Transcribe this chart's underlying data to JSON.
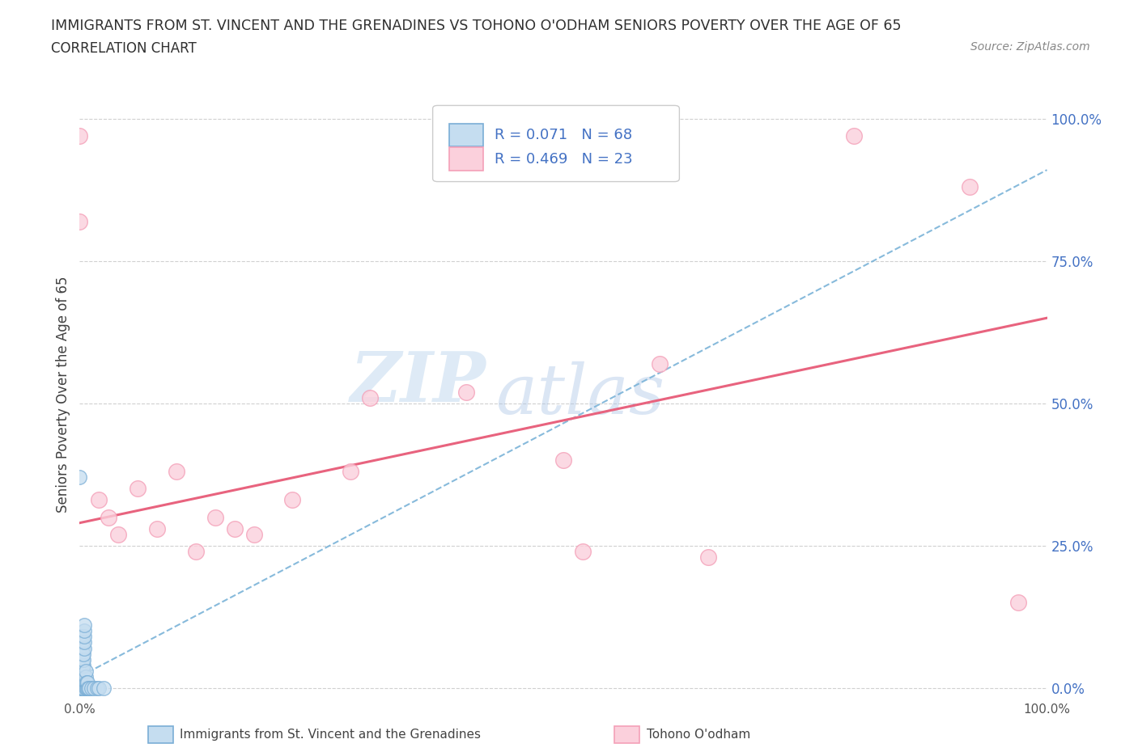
{
  "title": "IMMIGRANTS FROM ST. VINCENT AND THE GRENADINES VS TOHONO O'ODHAM SENIORS POVERTY OVER THE AGE OF 65",
  "subtitle": "CORRELATION CHART",
  "source": "Source: ZipAtlas.com",
  "ylabel": "Seniors Poverty Over the Age of 65",
  "ytick_labels": [
    "0.0%",
    "25.0%",
    "50.0%",
    "75.0%",
    "100.0%"
  ],
  "ytick_values": [
    0,
    0.25,
    0.5,
    0.75,
    1.0
  ],
  "xlim": [
    0,
    1.0
  ],
  "ylim": [
    -0.02,
    1.05
  ],
  "watermark_zip": "ZIP",
  "watermark_atlas": "atlas",
  "legend_text1": "R = 0.071   N = 68",
  "legend_text2": "R = 0.469   N = 23",
  "blue_edge": "#7aaed6",
  "blue_face": "#c5ddf0",
  "pink_edge": "#f4a0b8",
  "pink_face": "#fbd0dc",
  "line_blue": "#7ab3d8",
  "line_pink": "#e8637e",
  "grid_color": "#d0d0d0",
  "legend_text_color": "#4472c4",
  "axis_label_color": "#4472c4",
  "blue_x": [
    0.0,
    0.0,
    0.0,
    0.0,
    0.0,
    0.0,
    0.0,
    0.0,
    0.0,
    0.0,
    0.001,
    0.001,
    0.001,
    0.001,
    0.001,
    0.001,
    0.001,
    0.001,
    0.001,
    0.001,
    0.002,
    0.002,
    0.002,
    0.002,
    0.002,
    0.002,
    0.002,
    0.002,
    0.002,
    0.002,
    0.003,
    0.003,
    0.003,
    0.003,
    0.003,
    0.003,
    0.003,
    0.003,
    0.003,
    0.003,
    0.004,
    0.004,
    0.004,
    0.004,
    0.004,
    0.004,
    0.004,
    0.005,
    0.005,
    0.005,
    0.005,
    0.005,
    0.006,
    0.006,
    0.006,
    0.006,
    0.007,
    0.007,
    0.008,
    0.008,
    0.009,
    0.01,
    0.012,
    0.015,
    0.018,
    0.02,
    0.025,
    0.0
  ],
  "blue_y": [
    0.0,
    0.01,
    0.02,
    0.03,
    0.04,
    0.05,
    0.06,
    0.07,
    0.08,
    0.09,
    0.0,
    0.01,
    0.02,
    0.03,
    0.04,
    0.05,
    0.06,
    0.07,
    0.08,
    0.09,
    0.0,
    0.01,
    0.02,
    0.03,
    0.04,
    0.05,
    0.06,
    0.07,
    0.08,
    0.09,
    0.0,
    0.01,
    0.02,
    0.03,
    0.04,
    0.05,
    0.06,
    0.07,
    0.08,
    0.09,
    0.0,
    0.01,
    0.02,
    0.03,
    0.04,
    0.05,
    0.06,
    0.07,
    0.08,
    0.09,
    0.1,
    0.11,
    0.0,
    0.01,
    0.02,
    0.03,
    0.0,
    0.01,
    0.0,
    0.01,
    0.0,
    0.0,
    0.0,
    0.0,
    0.0,
    0.0,
    0.0,
    0.37
  ],
  "pink_x": [
    0.0,
    0.0,
    0.02,
    0.03,
    0.04,
    0.06,
    0.08,
    0.1,
    0.12,
    0.14,
    0.16,
    0.18,
    0.22,
    0.28,
    0.3,
    0.4,
    0.5,
    0.52,
    0.6,
    0.65,
    0.8,
    0.92,
    0.97
  ],
  "pink_y": [
    0.97,
    0.82,
    0.33,
    0.3,
    0.27,
    0.35,
    0.28,
    0.38,
    0.24,
    0.3,
    0.28,
    0.27,
    0.33,
    0.38,
    0.51,
    0.52,
    0.4,
    0.24,
    0.57,
    0.23,
    0.97,
    0.88,
    0.15
  ],
  "blue_trend_x": [
    0.0,
    1.0
  ],
  "blue_trend_y": [
    0.02,
    0.91
  ],
  "pink_trend_x": [
    0.0,
    1.0
  ],
  "pink_trend_y": [
    0.29,
    0.65
  ]
}
